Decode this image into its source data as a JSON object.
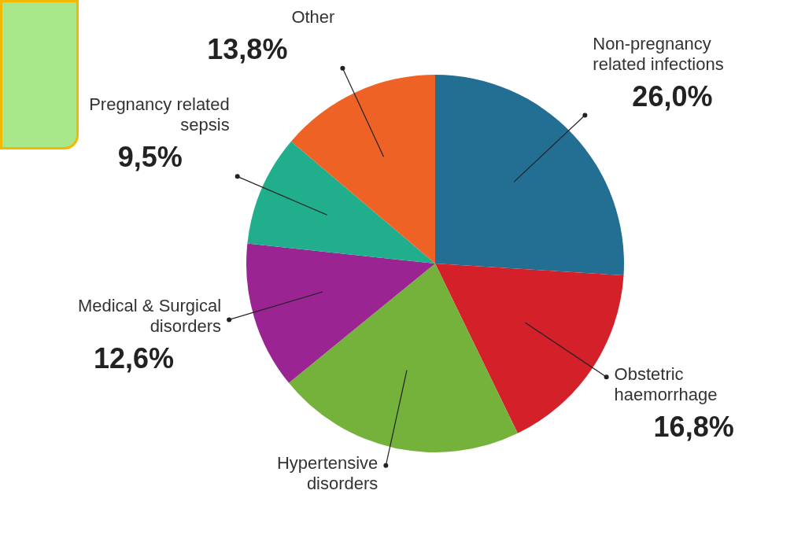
{
  "chart_data": {
    "type": "pie",
    "categories": [
      "Non-pregnancy related infections",
      "Obstetric haemorrhage",
      "Hypertensive disorders",
      "Medical & Surgical disorders",
      "Pregnancy related sepsis",
      "Other"
    ],
    "values": [
      26.0,
      16.8,
      21.3,
      12.6,
      9.5,
      13.8
    ],
    "colors": [
      "#236f93",
      "#d42129",
      "#74b23b",
      "#9a2491",
      "#21ae8c",
      "#ef6225"
    ],
    "value_labels": [
      "26,0%",
      "16,8%",
      null,
      "12,6%",
      "9,5%",
      "13,8%"
    ]
  }
}
